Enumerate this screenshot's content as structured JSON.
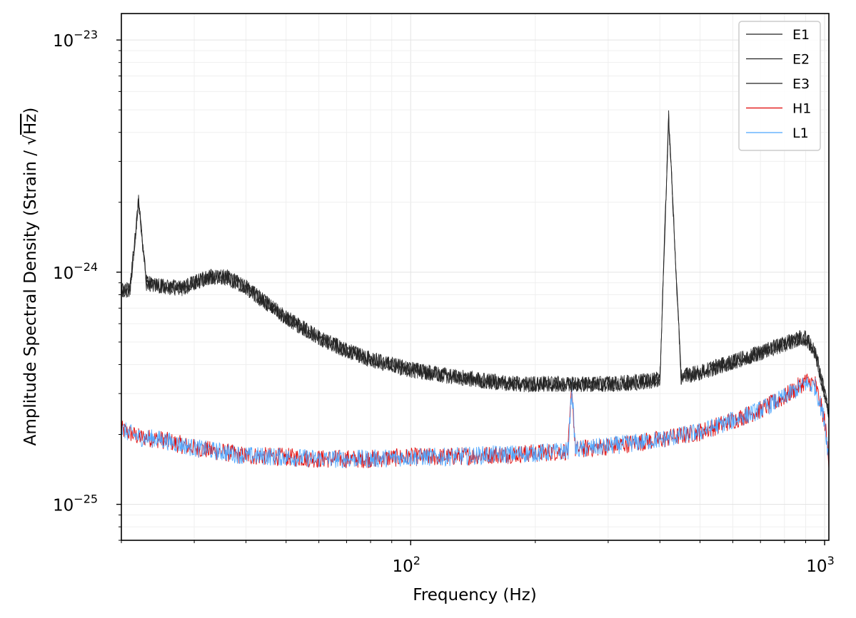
{
  "chart_data": {
    "type": "line",
    "title": "",
    "xlabel": "Frequency (Hz)",
    "ylabel_prefix": "Amplitude Spectral Density (Strain / ",
    "ylabel_sqrt": "√",
    "ylabel_unit": "Hz",
    "ylabel_suffix": ")",
    "xscale": "log",
    "yscale": "log",
    "xlim": [
      20,
      1024
    ],
    "ylim": [
      7e-26,
      1.3e-23
    ],
    "grid": true,
    "legend_position": "top-right",
    "x_ticks": [
      {
        "value": 100,
        "base": "10",
        "exp": "2"
      },
      {
        "value": 1000,
        "base": "10",
        "exp": "3"
      }
    ],
    "y_ticks": [
      {
        "value": 1e-25,
        "base": "10",
        "exp": "−25"
      },
      {
        "value": 1e-24,
        "base": "10",
        "exp": "−24"
      },
      {
        "value": 1e-23,
        "base": "10",
        "exp": "−23"
      }
    ],
    "series": [
      {
        "name": "E1",
        "color": "#000000",
        "x": [
          20,
          21,
          22,
          23,
          25,
          28,
          30,
          33,
          36,
          40,
          45,
          50,
          60,
          70,
          80,
          100,
          120,
          150,
          180,
          200,
          250,
          300,
          350,
          400,
          420,
          450,
          500,
          600,
          700,
          800,
          870,
          900,
          950,
          1000,
          1024
        ],
        "y": [
          8.3e-25,
          8.5e-25,
          2e-24,
          9e-25,
          8.7e-25,
          8.5e-25,
          9e-25,
          9.6e-25,
          9.5e-25,
          8.6e-25,
          7.3e-25,
          6.4e-25,
          5.2e-25,
          4.6e-25,
          4.2e-25,
          3.8e-25,
          3.6e-25,
          3.4e-25,
          3.3e-25,
          3.3e-25,
          3.3e-25,
          3.3e-25,
          3.35e-25,
          3.45e-25,
          4.7e-24,
          3.55e-25,
          3.7e-25,
          4.1e-25,
          4.5e-25,
          4.9e-25,
          5.2e-25,
          5.2e-25,
          4.5e-25,
          3e-25,
          2.4e-25
        ]
      },
      {
        "name": "E2",
        "color": "#000000",
        "x": [
          20,
          21,
          22,
          23,
          25,
          28,
          30,
          33,
          36,
          40,
          45,
          50,
          60,
          70,
          80,
          100,
          120,
          150,
          180,
          200,
          250,
          300,
          350,
          400,
          420,
          450,
          500,
          600,
          700,
          800,
          870,
          900,
          950,
          1000,
          1024
        ],
        "y": [
          8.3e-25,
          8.5e-25,
          2e-24,
          9e-25,
          8.7e-25,
          8.5e-25,
          9e-25,
          9.6e-25,
          9.5e-25,
          8.6e-25,
          7.3e-25,
          6.4e-25,
          5.2e-25,
          4.6e-25,
          4.2e-25,
          3.8e-25,
          3.6e-25,
          3.4e-25,
          3.3e-25,
          3.3e-25,
          3.3e-25,
          3.3e-25,
          3.35e-25,
          3.45e-25,
          4.7e-24,
          3.55e-25,
          3.7e-25,
          4.1e-25,
          4.5e-25,
          4.9e-25,
          5.2e-25,
          5.2e-25,
          4.5e-25,
          3e-25,
          2.4e-25
        ]
      },
      {
        "name": "E3",
        "color": "#000000",
        "x": [
          20,
          21,
          22,
          23,
          25,
          28,
          30,
          33,
          36,
          40,
          45,
          50,
          60,
          70,
          80,
          100,
          120,
          150,
          180,
          200,
          250,
          300,
          350,
          400,
          420,
          450,
          500,
          600,
          700,
          800,
          870,
          900,
          950,
          1000,
          1024
        ],
        "y": [
          8.3e-25,
          8.5e-25,
          2e-24,
          9e-25,
          8.7e-25,
          8.5e-25,
          9e-25,
          9.6e-25,
          9.5e-25,
          8.6e-25,
          7.3e-25,
          6.4e-25,
          5.2e-25,
          4.6e-25,
          4.2e-25,
          3.8e-25,
          3.6e-25,
          3.4e-25,
          3.3e-25,
          3.3e-25,
          3.3e-25,
          3.3e-25,
          3.35e-25,
          3.45e-25,
          4.7e-24,
          3.55e-25,
          3.7e-25,
          4.1e-25,
          4.5e-25,
          4.9e-25,
          5.2e-25,
          5.2e-25,
          4.5e-25,
          3e-25,
          2.4e-25
        ]
      },
      {
        "name": "H1",
        "color": "#e00000",
        "x": [
          20,
          22,
          25,
          30,
          35,
          40,
          50,
          60,
          70,
          80,
          100,
          120,
          150,
          200,
          240,
          245,
          250,
          300,
          400,
          500,
          600,
          700,
          800,
          900,
          950,
          1000,
          1024
        ],
        "y": [
          2.1e-25,
          1.95e-25,
          1.9e-25,
          1.75e-25,
          1.68e-25,
          1.62e-25,
          1.6e-25,
          1.57e-25,
          1.57e-25,
          1.57e-25,
          1.6e-25,
          1.6e-25,
          1.63e-25,
          1.66e-25,
          1.7e-25,
          3.2e-25,
          1.72e-25,
          1.78e-25,
          1.9e-25,
          2.05e-25,
          2.3e-25,
          2.55e-25,
          2.9e-25,
          3.4e-25,
          3.3e-25,
          2.3e-25,
          1.55e-25
        ]
      },
      {
        "name": "L1",
        "color": "#4da6ff",
        "x": [
          20,
          22,
          25,
          30,
          35,
          40,
          50,
          60,
          70,
          80,
          100,
          120,
          150,
          200,
          240,
          245,
          250,
          300,
          400,
          500,
          600,
          700,
          800,
          900,
          950,
          1000,
          1024
        ],
        "y": [
          2.1e-25,
          1.95e-25,
          1.9e-25,
          1.75e-25,
          1.68e-25,
          1.62e-25,
          1.6e-25,
          1.57e-25,
          1.57e-25,
          1.57e-25,
          1.6e-25,
          1.6e-25,
          1.63e-25,
          1.66e-25,
          1.7e-25,
          3.2e-25,
          1.72e-25,
          1.78e-25,
          1.9e-25,
          2.05e-25,
          2.3e-25,
          2.55e-25,
          2.9e-25,
          3.3e-25,
          3.2e-25,
          2.3e-25,
          1.55e-25
        ]
      }
    ]
  }
}
